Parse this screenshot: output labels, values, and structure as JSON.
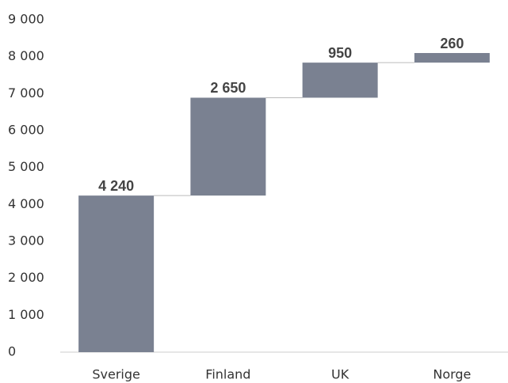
{
  "chart_data": {
    "type": "waterfall",
    "categories": [
      "Sverige",
      "Finland",
      "UK",
      "Norge"
    ],
    "values": [
      4240,
      2650,
      950,
      260
    ],
    "value_labels": [
      "4 240",
      "2 650",
      "950",
      "260"
    ],
    "color": "#7a8191",
    "ylim": [
      0,
      9000
    ],
    "yticks": [
      0,
      {
        "value": 1000,
        "label": "1 000"
      },
      {
        "value": 2000,
        "label": "2 000"
      },
      {
        "value": 3000,
        "label": "3 000"
      },
      {
        "value": 4000,
        "label": "4 000"
      },
      {
        "value": 5000,
        "label": "5 000"
      },
      {
        "value": 6000,
        "label": "6 000"
      },
      {
        "value": 7000,
        "label": "7 000"
      },
      {
        "value": 8000,
        "label": "8 000"
      },
      {
        "value": 9000,
        "label": "9 000"
      }
    ],
    "grid": false
  }
}
